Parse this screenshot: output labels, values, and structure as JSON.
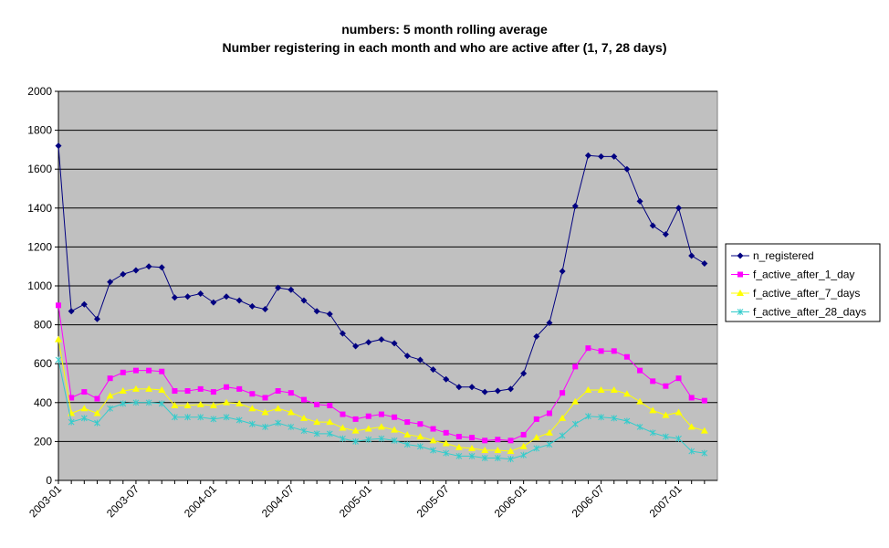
{
  "chart_data": {
    "type": "line",
    "title": "numbers: 5 month rolling average",
    "subtitle": "Number registering in each month and who are active after (1, 7, 28 days)",
    "categories": [
      "2003-01",
      null,
      null,
      null,
      null,
      null,
      "2003-07",
      null,
      null,
      null,
      null,
      null,
      "2004-01",
      null,
      null,
      null,
      null,
      null,
      "2004-07",
      null,
      null,
      null,
      null,
      null,
      "2005-01",
      null,
      null,
      null,
      null,
      null,
      "2005-07",
      null,
      null,
      null,
      null,
      null,
      "2006-01",
      null,
      null,
      null,
      null,
      null,
      "2006-07",
      null,
      null,
      null,
      null,
      null,
      "2007-01",
      null,
      null
    ],
    "series": [
      {
        "name": "n_registered",
        "color": "#000080",
        "marker": "diamond",
        "values": [
          1720,
          870,
          905,
          830,
          1020,
          1060,
          1080,
          1100,
          1095,
          940,
          945,
          960,
          915,
          945,
          925,
          895,
          880,
          990,
          980,
          925,
          870,
          855,
          755,
          690,
          710,
          725,
          705,
          640,
          620,
          570,
          520,
          480,
          480,
          455,
          460,
          470,
          550,
          740,
          810,
          1075,
          1410,
          1670,
          1665,
          1665,
          1600,
          1435,
          1310,
          1265,
          1400,
          1155,
          1115
        ]
      },
      {
        "name": "f_active_after_1_day",
        "color": "#ff00ff",
        "marker": "square",
        "values": [
          900,
          425,
          455,
          420,
          525,
          555,
          565,
          565,
          560,
          460,
          460,
          470,
          455,
          480,
          470,
          445,
          425,
          460,
          450,
          415,
          390,
          385,
          340,
          315,
          330,
          340,
          325,
          300,
          290,
          265,
          245,
          225,
          220,
          205,
          210,
          205,
          235,
          315,
          345,
          450,
          585,
          680,
          665,
          665,
          635,
          565,
          510,
          485,
          525,
          425,
          410
        ]
      },
      {
        "name": "f_active_after_7_days",
        "color": "#ffff00",
        "marker": "triangle",
        "values": [
          725,
          345,
          370,
          345,
          435,
          460,
          470,
          470,
          465,
          385,
          385,
          390,
          385,
          400,
          395,
          370,
          350,
          370,
          350,
          320,
          300,
          300,
          270,
          255,
          265,
          275,
          260,
          235,
          225,
          205,
          190,
          170,
          165,
          155,
          155,
          150,
          175,
          220,
          245,
          320,
          405,
          465,
          465,
          465,
          445,
          405,
          360,
          335,
          350,
          275,
          255
        ]
      },
      {
        "name": "f_active_after_28_days",
        "color": "#33cccc",
        "marker": "x",
        "values": [
          620,
          300,
          320,
          295,
          370,
          395,
          400,
          400,
          395,
          325,
          325,
          325,
          315,
          325,
          310,
          290,
          275,
          295,
          275,
          255,
          240,
          240,
          215,
          200,
          210,
          215,
          205,
          185,
          175,
          155,
          140,
          125,
          125,
          115,
          115,
          110,
          130,
          165,
          185,
          230,
          290,
          330,
          325,
          320,
          305,
          275,
          245,
          225,
          215,
          150,
          140
        ]
      }
    ],
    "ylim": [
      0,
      2000
    ],
    "yticks": [
      0,
      200,
      400,
      600,
      800,
      1000,
      1200,
      1400,
      1600,
      1800,
      2000
    ],
    "grid": true,
    "legend": "right",
    "plot_background": "#c0c0c0"
  }
}
